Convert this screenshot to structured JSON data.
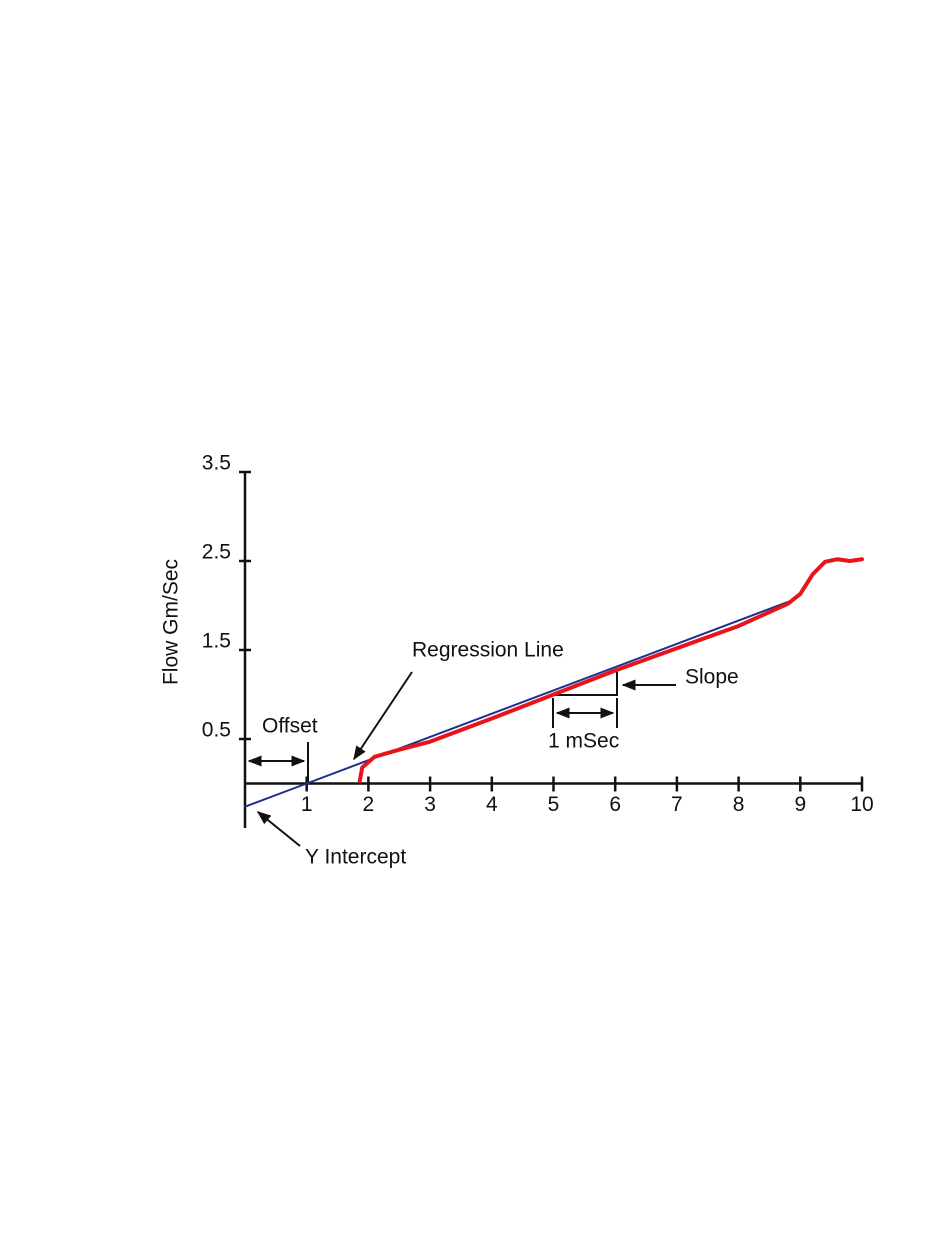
{
  "chart_data": {
    "type": "line",
    "y_label": "Flow Gm/Sec",
    "annotations": [
      "Regression Line",
      "Offset",
      "Slope",
      "1 mSec",
      "Y Intercept"
    ],
    "xlim": [
      0,
      10
    ],
    "ylim": [
      -0.5,
      3.5
    ],
    "xticks": [
      1,
      2,
      3,
      4,
      5,
      6,
      7,
      8,
      9,
      10
    ],
    "yticks": [
      0.5,
      1.5,
      2.5,
      3.5
    ],
    "series": [
      {
        "color": "#1f2f8f",
        "width": 2,
        "x": [
          0,
          1,
          8.8
        ],
        "values": [
          -0.26,
          0,
          2.04
        ]
      },
      {
        "color": "#e8141b",
        "width": 4,
        "x": [
          1.86,
          1.9,
          2.1,
          2.5,
          3,
          4,
          5,
          6,
          7,
          8,
          8.8,
          9,
          9.2,
          9.4,
          9.6,
          9.8,
          10
        ],
        "values": [
          0.03,
          0.18,
          0.3,
          0.38,
          0.47,
          0.73,
          1.0,
          1.27,
          1.52,
          1.77,
          2.02,
          2.13,
          2.35,
          2.49,
          2.52,
          2.5,
          2.52
        ]
      }
    ]
  }
}
